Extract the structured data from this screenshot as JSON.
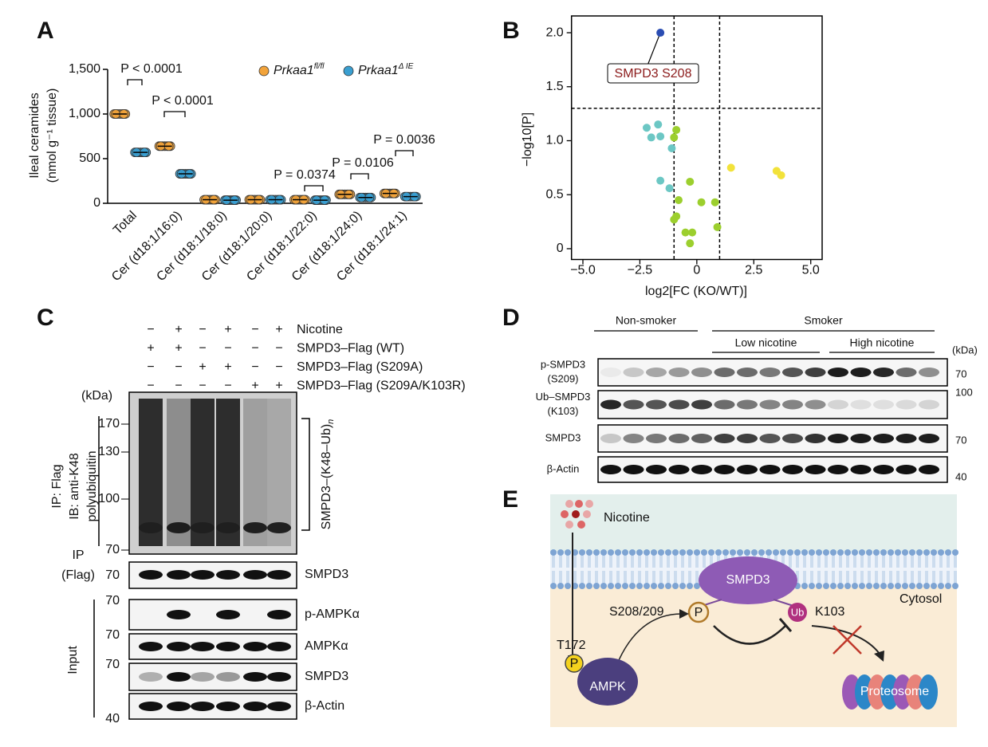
{
  "chart_data": [
    {
      "type": "dot",
      "panel": "A",
      "y_label": [
        "Ileal ceramides",
        "(nmol g⁻¹ tissue)"
      ],
      "categories": [
        "Total",
        "Cer (d18:1/16:0)",
        "Cer (d18:1/18:0)",
        "Cer (d18:1/20:0)",
        "Cer (d18:1/22:0)",
        "Cer (d18:1/24:0)",
        "Cer (d18:1/24:1)"
      ],
      "series": [
        {
          "name": "Prkaa1",
          "name_sup": "fl/fl",
          "color": "#f2a33a",
          "values": [
            1000,
            640,
            40,
            40,
            40,
            100,
            110
          ]
        },
        {
          "name": "Prkaa1",
          "name_sup": "Δ IE",
          "color": "#3a9fd1",
          "values": [
            570,
            330,
            35,
            40,
            35,
            65,
            75
          ]
        }
      ],
      "ylim": [
        0,
        1500
      ],
      "yticks": [
        0,
        500,
        {
          "value": 1000,
          "label": "1,000"
        },
        {
          "value": 1500,
          "label": "1,500"
        }
      ],
      "annotations": [
        "P < 0.0001",
        "P < 0.0001",
        "P = 0.0374",
        "P = 0.0106",
        "P = 0.0036"
      ]
    },
    {
      "type": "scatter",
      "panel": "B",
      "x_label": "log2[FC (KO/WT)]",
      "y_label": "−log10[P]",
      "x": [
        -1.6,
        -1.7,
        -2.2,
        -1.6,
        -2.0,
        -1.1,
        -1.6,
        -1.2,
        -0.9,
        -1.0,
        -0.3,
        -0.8,
        -0.9,
        -1.0,
        0.2,
        0.8,
        -0.5,
        -0.2,
        0.9,
        -0.3,
        1.5,
        3.5,
        3.7
      ],
      "y": [
        2.0,
        1.15,
        1.12,
        1.04,
        1.03,
        0.93,
        0.63,
        0.56,
        1.1,
        1.03,
        0.62,
        0.45,
        0.3,
        0.27,
        0.43,
        0.43,
        0.15,
        0.15,
        0.2,
        0.05,
        0.75,
        0.72,
        0.68
      ],
      "colors": [
        "#2b4db3",
        "#6cc7c4",
        "#6cc7c4",
        "#6cc7c4",
        "#6cc7c4",
        "#6cc7c4",
        "#6cc7c4",
        "#6cc7c4",
        "#9ccf2e",
        "#9ccf2e",
        "#9ccf2e",
        "#9ccf2e",
        "#9ccf2e",
        "#9ccf2e",
        "#9ccf2e",
        "#9ccf2e",
        "#9ccf2e",
        "#9ccf2e",
        "#9ccf2e",
        "#9ccf2e",
        "#f2e23a",
        "#f2e23a",
        "#f2e23a"
      ],
      "xlim": [
        -5.5,
        5.5
      ],
      "ylim": [
        -0.1,
        2.1
      ],
      "xticks": [
        {
          "value": -5,
          "label": "−5.0"
        },
        {
          "value": -2.5,
          "label": "−2.5"
        },
        0,
        {
          "value": 2.5,
          "label": "2.5"
        },
        {
          "value": 5,
          "label": "5.0"
        }
      ],
      "yticks": [
        0,
        0.5,
        {
          "value": 1,
          "label": "1.0"
        },
        1.5,
        {
          "value": 2,
          "label": "2.0"
        }
      ],
      "thresholds": {
        "x": [
          -1,
          1
        ],
        "y": [
          1.3
        ]
      },
      "annotation": "SMPD3 S208"
    }
  ],
  "panel_c": {
    "label": "C",
    "conditions": [
      {
        "label": "Nicotine",
        "signs": [
          "−",
          "+",
          "−",
          "+",
          "−",
          "+"
        ]
      },
      {
        "label": "SMPD3–Flag (WT)",
        "signs": [
          "+",
          "+",
          "−",
          "−",
          "−",
          "−"
        ]
      },
      {
        "label": "SMPD3–Flag (S209A)",
        "signs": [
          "−",
          "−",
          "+",
          "+",
          "−",
          "−"
        ]
      },
      {
        "label": "SMPD3–Flag (S209A/K103R)",
        "signs": [
          "−",
          "−",
          "−",
          "−",
          "+",
          "+"
        ]
      }
    ],
    "kda_header": "(kDa)",
    "ip_label": [
      "IP: Flag",
      "IB: anti-K48",
      "polyubiquitin"
    ],
    "markers": [
      "170",
      "130",
      "100",
      "70"
    ],
    "bracket_label": "SMPD3–(K48–Ub)",
    "bracket_sub": "n",
    "ip_flag": [
      "IP",
      "(Flag)"
    ],
    "ip_row": {
      "label": "SMPD3",
      "kda": "70"
    },
    "input_label": "Input",
    "input_rows": [
      {
        "label": "p-AMPKα",
        "kda": "70"
      },
      {
        "label": "AMPKα",
        "kda": "70"
      },
      {
        "label": "SMPD3",
        "kda": "70"
      },
      {
        "label": "β-Actin",
        "kda": "40"
      }
    ]
  },
  "panel_d": {
    "label": "D",
    "groups": [
      "Non-smoker",
      "Smoker"
    ],
    "subgroups": [
      "Low nicotine",
      "High nicotine"
    ],
    "kda_header": "(kDa)",
    "rows": [
      {
        "label": [
          "p-SMPD3",
          "(S209)"
        ],
        "kda": "70"
      },
      {
        "label": [
          "Ub–SMPD3",
          "(K103)"
        ],
        "kda": "100"
      },
      {
        "label": [
          "SMPD3"
        ],
        "kda": "70"
      },
      {
        "label": [
          "β-Actin"
        ],
        "kda": "40"
      }
    ]
  },
  "panel_e": {
    "label": "E",
    "nicotine": "Nicotine",
    "smpd3": "SMPD3",
    "cytosol": "Cytosol",
    "site": "S208/209",
    "p1": "P",
    "ub": "Ub",
    "k103": "K103",
    "t172": "T172",
    "p2": "P",
    "ampk": "AMPK",
    "proteosome": "Proteosome"
  }
}
